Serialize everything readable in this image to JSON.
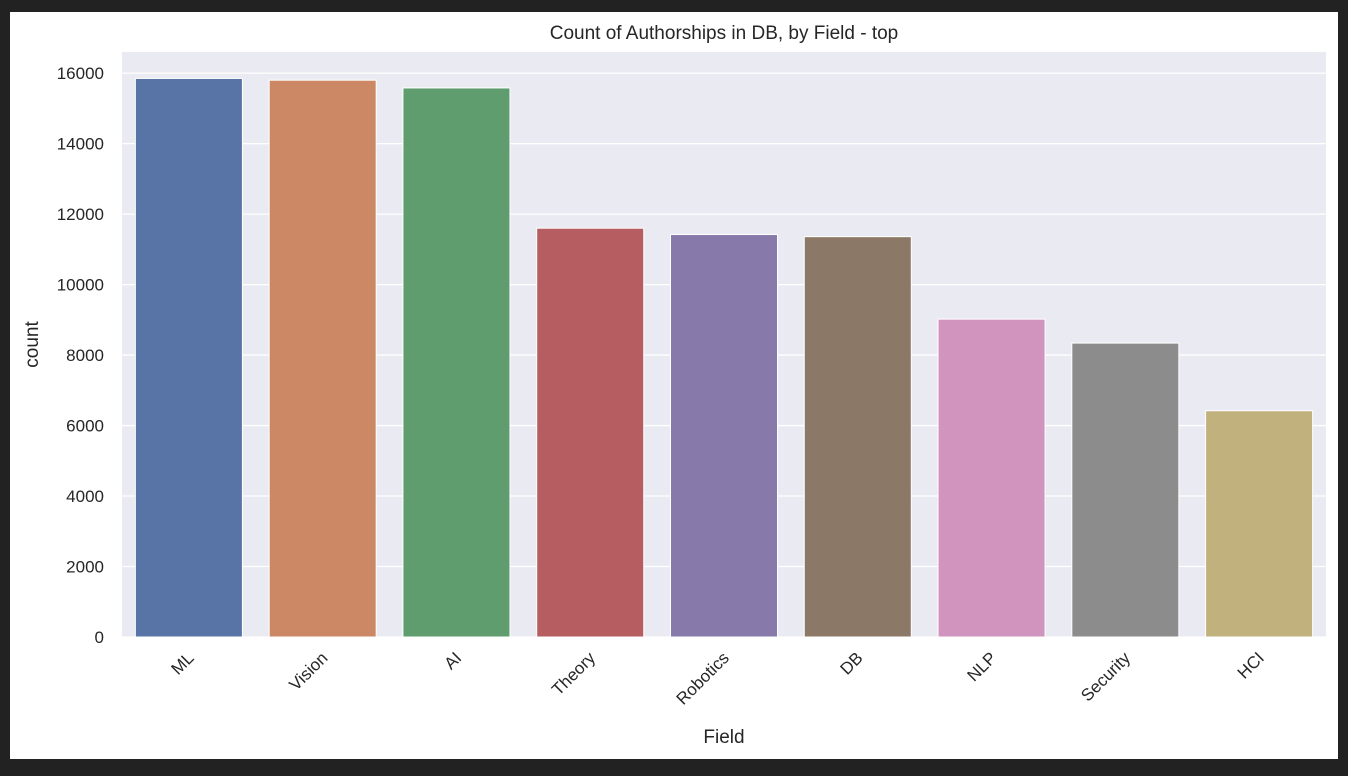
{
  "window": {
    "background": "#222222"
  },
  "chart_data": {
    "type": "bar",
    "title": "Count of Authorships in DB, by Field - top",
    "xlabel": "Field",
    "ylabel": "count",
    "categories": [
      "ML",
      "Vision",
      "AI",
      "Theory",
      "Robotics",
      "DB",
      "NLP",
      "Security",
      "HCI"
    ],
    "values": [
      15850,
      15800,
      15580,
      11600,
      11420,
      11360,
      9020,
      8340,
      6420
    ],
    "colors": [
      "#5874a6",
      "#cc8864",
      "#5f9d6e",
      "#b55d60",
      "#8779aa",
      "#8b7866",
      "#d194bf",
      "#8c8c8c",
      "#c1b17d"
    ],
    "ylim": [
      0,
      16600
    ],
    "yticks": [
      0,
      2000,
      4000,
      6000,
      8000,
      10000,
      12000,
      14000,
      16000
    ],
    "grid": true,
    "style": {
      "plot_background": "#eaeaf2",
      "grid_color": "#ffffff"
    }
  }
}
